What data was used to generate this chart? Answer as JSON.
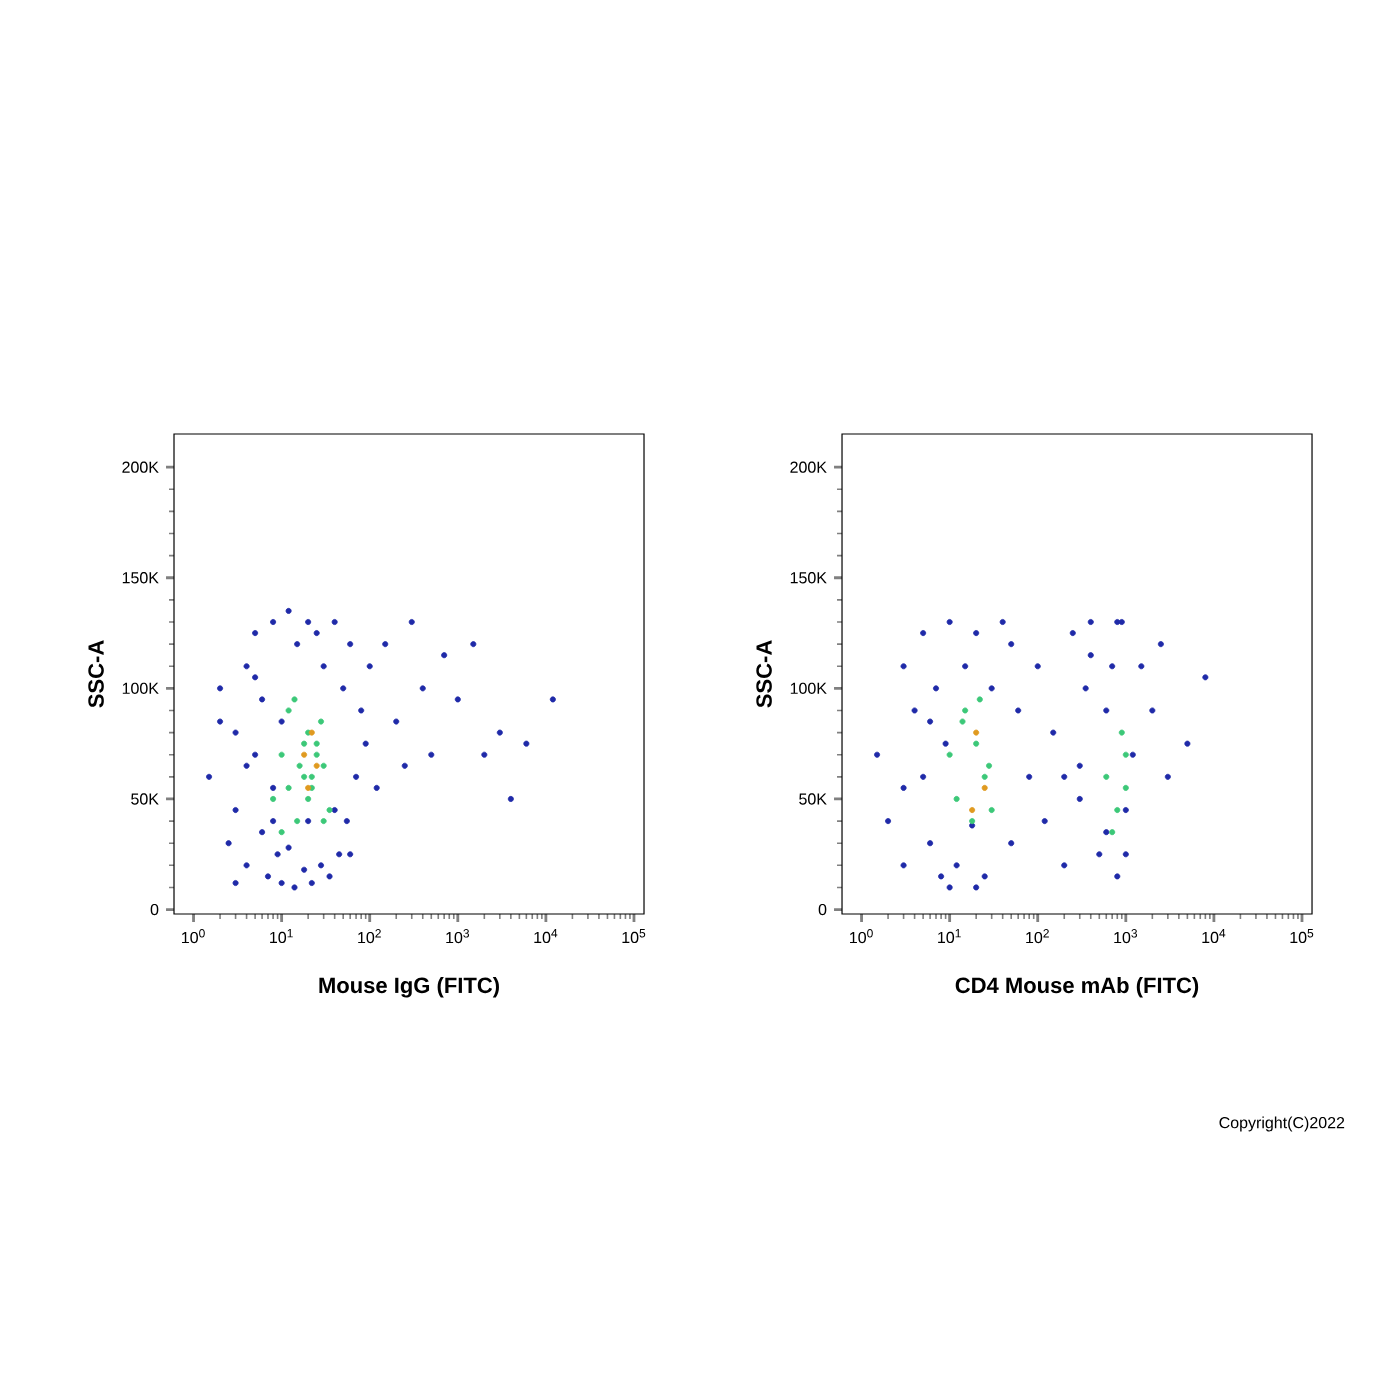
{
  "chart_data": [
    {
      "type": "scatter",
      "xlabel": "Mouse IgG (FITC)",
      "ylabel": "SSC-A",
      "log": "x",
      "marker": "circle",
      "grid": false,
      "xlim": [
        0.6,
        130000
      ],
      "ylim": [
        -2000,
        215000
      ],
      "xticks": [
        {
          "value": 1,
          "label": "10$^{0}$"
        },
        {
          "value": 10,
          "label": "10$^{1}$"
        },
        {
          "value": 100,
          "label": "10$^{2}$"
        },
        {
          "value": 1000,
          "label": "10$^{3}$"
        },
        {
          "value": 10000,
          "label": "10$^{4}$"
        },
        {
          "value": 100000,
          "label": "10$^{5}$"
        }
      ],
      "yticks": [
        {
          "value": 0,
          "label": "0"
        },
        {
          "value": 50000,
          "label": "50K"
        },
        {
          "value": 100000,
          "label": "100K"
        },
        {
          "value": 150000,
          "label": "150K"
        },
        {
          "value": 200000,
          "label": "200K"
        }
      ],
      "series": [
        {
          "color": "#1f2aa8",
          "x": [
            1.5,
            2,
            2.5,
            3,
            3,
            4,
            4,
            5,
            5,
            6,
            6,
            7,
            8,
            8,
            9,
            10,
            12,
            14,
            15,
            18,
            20,
            22,
            25,
            28,
            30,
            35,
            40,
            45,
            50,
            55,
            60,
            70,
            80,
            90,
            100,
            120,
            150,
            200,
            250,
            300,
            400,
            500,
            700,
            1000,
            1500,
            2000,
            3000,
            4000,
            6000,
            12000,
            3,
            5,
            8,
            12,
            20,
            40,
            60,
            2,
            4,
            10
          ],
          "values": [
            60000,
            100000,
            30000,
            80000,
            45000,
            110000,
            20000,
            70000,
            125000,
            35000,
            95000,
            15000,
            55000,
            130000,
            25000,
            12000,
            135000,
            10000,
            120000,
            18000,
            130000,
            12000,
            125000,
            20000,
            110000,
            15000,
            130000,
            25000,
            100000,
            40000,
            120000,
            60000,
            90000,
            75000,
            110000,
            55000,
            120000,
            85000,
            65000,
            130000,
            100000,
            70000,
            115000,
            95000,
            120000,
            70000,
            80000,
            50000,
            75000,
            95000,
            12000,
            105000,
            40000,
            28000,
            40000,
            45000,
            25000,
            85000,
            65000,
            85000
          ]
        },
        {
          "color": "#3cc878",
          "x": [
            8,
            10,
            12,
            15,
            18,
            20,
            22,
            25,
            30,
            35,
            10,
            14,
            18,
            22,
            28,
            12,
            16,
            20,
            25,
            30
          ],
          "values": [
            50000,
            70000,
            90000,
            40000,
            60000,
            80000,
            55000,
            70000,
            65000,
            45000,
            35000,
            95000,
            75000,
            60000,
            85000,
            55000,
            65000,
            50000,
            75000,
            40000
          ]
        },
        {
          "color": "#e09a20",
          "x": [
            18,
            20,
            25,
            22
          ],
          "values": [
            70000,
            55000,
            65000,
            80000
          ]
        }
      ]
    },
    {
      "type": "scatter",
      "xlabel": "CD4 Mouse mAb (FITC)",
      "ylabel": "SSC-A",
      "log": "x",
      "marker": "circle",
      "grid": false,
      "xlim": [
        0.6,
        130000
      ],
      "ylim": [
        -2000,
        215000
      ],
      "xticks": [
        {
          "value": 1,
          "label": "10$^{0}$"
        },
        {
          "value": 10,
          "label": "10$^{1}$"
        },
        {
          "value": 100,
          "label": "10$^{2}$"
        },
        {
          "value": 1000,
          "label": "10$^{3}$"
        },
        {
          "value": 10000,
          "label": "10$^{4}$"
        },
        {
          "value": 100000,
          "label": "10$^{5}$"
        }
      ],
      "yticks": [
        {
          "value": 0,
          "label": "0"
        },
        {
          "value": 50000,
          "label": "50K"
        },
        {
          "value": 100000,
          "label": "100K"
        },
        {
          "value": 150000,
          "label": "150K"
        },
        {
          "value": 200000,
          "label": "200K"
        }
      ],
      "annotations": [
        "Copyright(C)2022"
      ],
      "series": [
        {
          "color": "#1f2aa8",
          "x": [
            1.5,
            2,
            3,
            3,
            4,
            5,
            5,
            6,
            7,
            8,
            9,
            10,
            12,
            15,
            18,
            20,
            25,
            30,
            40,
            50,
            60,
            80,
            100,
            120,
            150,
            200,
            250,
            300,
            350,
            400,
            500,
            600,
            700,
            800,
            900,
            1000,
            1200,
            1500,
            2000,
            2500,
            3000,
            5000,
            8000,
            3,
            6,
            10,
            20,
            50,
            300,
            600,
            1000,
            200,
            400,
            800
          ],
          "values": [
            70000,
            40000,
            110000,
            20000,
            90000,
            60000,
            125000,
            30000,
            100000,
            15000,
            75000,
            130000,
            20000,
            110000,
            38000,
            125000,
            15000,
            100000,
            130000,
            30000,
            90000,
            60000,
            110000,
            40000,
            80000,
            20000,
            125000,
            50000,
            100000,
            130000,
            25000,
            90000,
            110000,
            15000,
            130000,
            45000,
            70000,
            110000,
            90000,
            120000,
            60000,
            75000,
            105000,
            55000,
            85000,
            10000,
            10000,
            120000,
            65000,
            35000,
            25000,
            60000,
            115000,
            130000
          ]
        },
        {
          "color": "#3cc878",
          "x": [
            10,
            12,
            15,
            18,
            20,
            25,
            30,
            14,
            22,
            28,
            600,
            800,
            1000,
            700,
            900,
            1000
          ],
          "values": [
            70000,
            50000,
            90000,
            40000,
            75000,
            60000,
            45000,
            85000,
            95000,
            65000,
            60000,
            45000,
            70000,
            35000,
            80000,
            55000
          ]
        },
        {
          "color": "#e09a20",
          "x": [
            20,
            25,
            18
          ],
          "values": [
            80000,
            55000,
            45000
          ]
        }
      ]
    }
  ]
}
